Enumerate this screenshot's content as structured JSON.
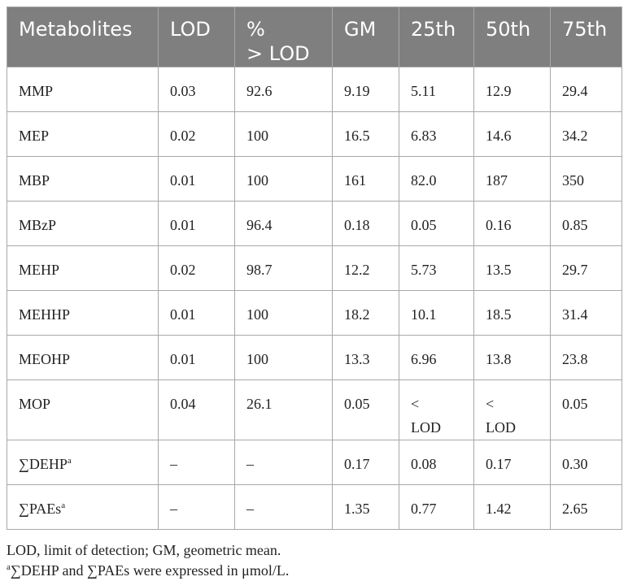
{
  "table": {
    "headers": [
      "Metabolites",
      "LOD",
      "%\n> LOD",
      "GM",
      "25th",
      "50th",
      "75th"
    ],
    "rows": [
      {
        "name": "MMP",
        "lod": "0.03",
        "pct": "92.6",
        "gm": "9.19",
        "p25": "5.11",
        "p50": "12.9",
        "p75": "29.4"
      },
      {
        "name": "MEP",
        "lod": "0.02",
        "pct": "100",
        "gm": "16.5",
        "p25": "6.83",
        "p50": "14.6",
        "p75": "34.2"
      },
      {
        "name": "MBP",
        "lod": "0.01",
        "pct": "100",
        "gm": "161",
        "p25": "82.0",
        "p50": "187",
        "p75": "350"
      },
      {
        "name": "MBzP",
        "lod": "0.01",
        "pct": "96.4",
        "gm": "0.18",
        "p25": "0.05",
        "p50": "0.16",
        "p75": "0.85"
      },
      {
        "name": "MEHP",
        "lod": "0.02",
        "pct": "98.7",
        "gm": "12.2",
        "p25": "5.73",
        "p50": "13.5",
        "p75": "29.7"
      },
      {
        "name": "MEHHP",
        "lod": "0.01",
        "pct": "100",
        "gm": "18.2",
        "p25": "10.1",
        "p50": "18.5",
        "p75": "31.4"
      },
      {
        "name": "MEOHP",
        "lod": "0.01",
        "pct": "100",
        "gm": "13.3",
        "p25": "6.96",
        "p50": "13.8",
        "p75": "23.8"
      },
      {
        "name": "MOP",
        "lod": "0.04",
        "pct": "26.1",
        "gm": "0.05",
        "p25": "<\nLOD",
        "p50": "<\nLOD",
        "p75": "0.05"
      },
      {
        "name": "∑DEHP",
        "sup": "a",
        "lod": "–",
        "pct": "–",
        "gm": "0.17",
        "p25": "0.08",
        "p50": "0.17",
        "p75": "0.30"
      },
      {
        "name": "∑PAEs",
        "sup": "a",
        "lod": "–",
        "pct": "–",
        "gm": "1.35",
        "p25": "0.77",
        "p50": "1.42",
        "p75": "2.65"
      }
    ]
  },
  "notes": {
    "abbrev": "LOD, limit of detection; GM, geometric mean.",
    "footnote_mark": "a",
    "footnote_text": "∑DEHP and ∑PAEs were expressed in μmol/L."
  }
}
